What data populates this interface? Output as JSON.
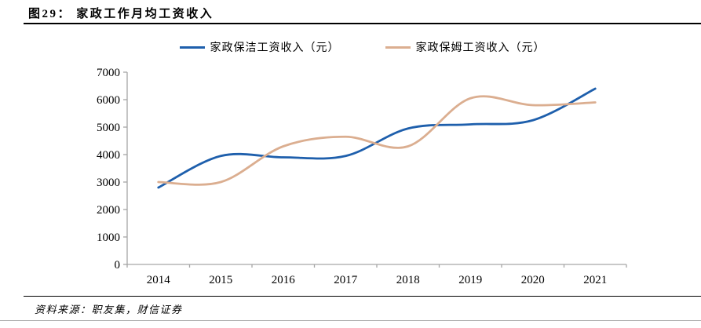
{
  "page": {
    "title": "图29： 家政工作月均工资收入",
    "source": "资料来源：职友集，财信证券"
  },
  "colors": {
    "cleaner_line": "#1E5FAC",
    "nanny_line": "#DBAE90",
    "axis": "#A6A6A6",
    "text": "#000000"
  },
  "chart_data": {
    "type": "line",
    "title": "家政工作月均工资收入",
    "categories": [
      "2014",
      "2015",
      "2016",
      "2017",
      "2018",
      "2019",
      "2020",
      "2021"
    ],
    "series": [
      {
        "name": "家政保洁工资收入（元）",
        "color": "#1E5FAC",
        "values": [
          2800,
          3950,
          3900,
          3950,
          4950,
          5100,
          5250,
          6400
        ]
      },
      {
        "name": "家政保姆工资收入（元）",
        "color": "#DBAE90",
        "values": [
          3000,
          3000,
          4300,
          4650,
          4300,
          6050,
          5800,
          5900
        ]
      }
    ],
    "xlabel": "",
    "ylabel": "",
    "ylim": [
      0,
      7000
    ],
    "ytick_step": 1000,
    "grid": false,
    "smooth": true,
    "legend_position": "top"
  }
}
